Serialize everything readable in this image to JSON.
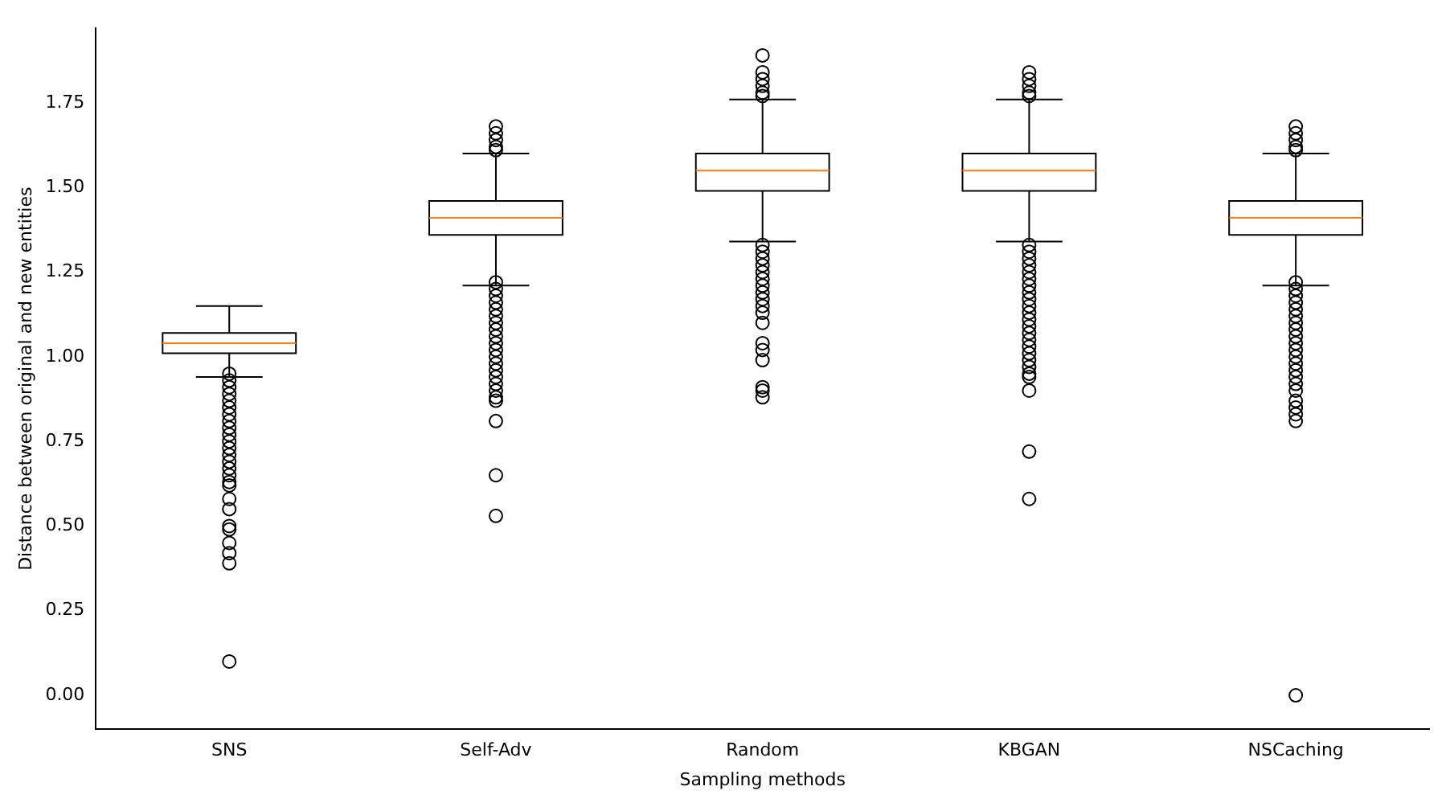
{
  "chart_data": {
    "type": "box",
    "xlabel": "Sampling methods",
    "ylabel": "Distance between original and new entities",
    "categories": [
      "SNS",
      "Self-Adv",
      "Random",
      "KBGAN",
      "NSCaching"
    ],
    "ylim": [
      -0.1,
      1.97
    ],
    "yticks": [
      {
        "value": 0,
        "label": "0.00"
      },
      {
        "value": 0.25,
        "label": "0.25"
      },
      {
        "value": 0.5,
        "label": "0.50"
      },
      {
        "value": 0.75,
        "label": "0.75"
      },
      {
        "value": 1,
        "label": "1.00"
      },
      {
        "value": 1.25,
        "label": "1.25"
      },
      {
        "value": 1.5,
        "label": "1.50"
      },
      {
        "value": 1.75,
        "label": "1.75"
      }
    ],
    "grid": false,
    "marker": "circle",
    "boxes": [
      {
        "low": 0.94,
        "q1": 1.01,
        "median": 1.04,
        "q3": 1.07,
        "high": 1.15,
        "outliers": [
          0.95,
          0.93,
          0.91,
          0.89,
          0.87,
          0.85,
          0.83,
          0.81,
          0.79,
          0.77,
          0.75,
          0.73,
          0.71,
          0.69,
          0.67,
          0.65,
          0.63,
          0.62,
          0.58,
          0.55,
          0.5,
          0.49,
          0.45,
          0.42,
          0.39,
          0.1
        ]
      },
      {
        "low": 1.21,
        "q1": 1.36,
        "median": 1.41,
        "q3": 1.46,
        "high": 1.6,
        "outliers": [
          1.68,
          1.66,
          1.64,
          1.62,
          1.61,
          1.22,
          1.2,
          1.18,
          1.16,
          1.14,
          1.12,
          1.1,
          1.08,
          1.06,
          1.04,
          1.02,
          1.0,
          0.98,
          0.96,
          0.94,
          0.92,
          0.9,
          0.88,
          0.87,
          0.81,
          0.65,
          0.53
        ]
      },
      {
        "low": 1.34,
        "q1": 1.49,
        "median": 1.55,
        "q3": 1.6,
        "high": 1.76,
        "outliers": [
          1.89,
          1.84,
          1.82,
          1.8,
          1.78,
          1.77,
          1.33,
          1.31,
          1.29,
          1.27,
          1.25,
          1.23,
          1.21,
          1.19,
          1.17,
          1.15,
          1.13,
          1.1,
          1.04,
          1.02,
          0.99,
          0.91,
          0.9,
          0.88
        ]
      },
      {
        "low": 1.34,
        "q1": 1.49,
        "median": 1.55,
        "q3": 1.6,
        "high": 1.76,
        "outliers": [
          1.84,
          1.82,
          1.8,
          1.78,
          1.77,
          1.33,
          1.31,
          1.29,
          1.27,
          1.25,
          1.23,
          1.21,
          1.19,
          1.17,
          1.15,
          1.13,
          1.11,
          1.09,
          1.07,
          1.05,
          1.03,
          1.01,
          0.99,
          0.97,
          0.95,
          0.94,
          0.9,
          0.72,
          0.58
        ]
      },
      {
        "low": 1.21,
        "q1": 1.36,
        "median": 1.41,
        "q3": 1.46,
        "high": 1.6,
        "outliers": [
          1.68,
          1.66,
          1.64,
          1.62,
          1.61,
          1.22,
          1.2,
          1.18,
          1.16,
          1.14,
          1.12,
          1.1,
          1.08,
          1.06,
          1.04,
          1.02,
          1.0,
          0.98,
          0.96,
          0.94,
          0.92,
          0.9,
          0.87,
          0.85,
          0.83,
          0.81,
          0.0
        ]
      }
    ]
  }
}
